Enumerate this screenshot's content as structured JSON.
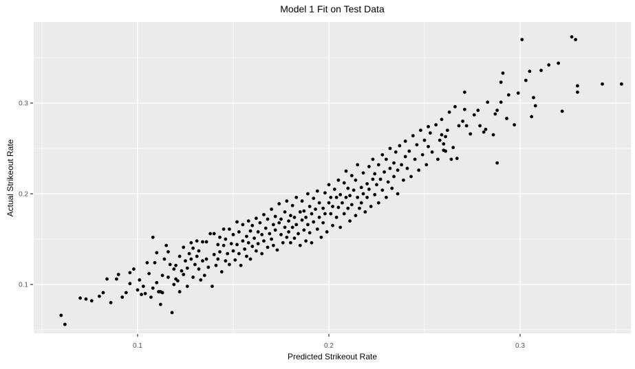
{
  "chart_data": {
    "type": "scatter",
    "title": "Model 1 Fit on Test Data",
    "xlabel": "Predicted Strikeout Rate",
    "ylabel": "Actual Strikeout Rate",
    "legend": "none",
    "grid": "major+minor",
    "panel_bg": "#EBEBEB",
    "grid_color": "#FFFFFF",
    "tick_color": "#333333",
    "tick_label_color": "#4D4D4D",
    "point_color": "#000000",
    "x_ticks": [
      0.1,
      0.2,
      0.3
    ],
    "x_tick_labels": [
      "0.1",
      "0.2",
      "0.3"
    ],
    "y_ticks": [
      0.1,
      0.2,
      0.3
    ],
    "y_tick_labels": [
      "0.1",
      "0.2",
      "0.3"
    ],
    "x_minor_ticks": [
      0.05,
      0.15,
      0.25,
      0.35
    ],
    "y_minor_ticks": [
      0.05,
      0.15,
      0.25,
      0.35
    ],
    "xlim": [
      0.0457,
      0.358
    ],
    "ylim": [
      0.0462,
      0.3894
    ],
    "points": [
      [
        0.06,
        0.066
      ],
      [
        0.062,
        0.056
      ],
      [
        0.07,
        0.085
      ],
      [
        0.073,
        0.084
      ],
      [
        0.076,
        0.082
      ],
      [
        0.08,
        0.087
      ],
      [
        0.082,
        0.091
      ],
      [
        0.084,
        0.106
      ],
      [
        0.086,
        0.08
      ],
      [
        0.089,
        0.106
      ],
      [
        0.09,
        0.111
      ],
      [
        0.092,
        0.086
      ],
      [
        0.094,
        0.091
      ],
      [
        0.096,
        0.101
      ],
      [
        0.096,
        0.113
      ],
      [
        0.098,
        0.117
      ],
      [
        0.1,
        0.094
      ],
      [
        0.101,
        0.105
      ],
      [
        0.102,
        0.089
      ],
      [
        0.103,
        0.098
      ],
      [
        0.104,
        0.09
      ],
      [
        0.105,
        0.124
      ],
      [
        0.106,
        0.112
      ],
      [
        0.107,
        0.086
      ],
      [
        0.108,
        0.096
      ],
      [
        0.108,
        0.152
      ],
      [
        0.109,
        0.124
      ],
      [
        0.11,
        0.102
      ],
      [
        0.11,
        0.135
      ],
      [
        0.111,
        0.092
      ],
      [
        0.112,
        0.078
      ],
      [
        0.112,
        0.092
      ],
      [
        0.113,
        0.091
      ],
      [
        0.113,
        0.11
      ],
      [
        0.114,
        0.128
      ],
      [
        0.115,
        0.143
      ],
      [
        0.116,
        0.136
      ],
      [
        0.116,
        0.108
      ],
      [
        0.117,
        0.122
      ],
      [
        0.118,
        0.069
      ],
      [
        0.119,
        0.1
      ],
      [
        0.119,
        0.117
      ],
      [
        0.12,
        0.106
      ],
      [
        0.12,
        0.121
      ],
      [
        0.121,
        0.104
      ],
      [
        0.122,
        0.092
      ],
      [
        0.122,
        0.131
      ],
      [
        0.123,
        0.115
      ],
      [
        0.124,
        0.141
      ],
      [
        0.124,
        0.111
      ],
      [
        0.125,
        0.126
      ],
      [
        0.126,
        0.118
      ],
      [
        0.126,
        0.098
      ],
      [
        0.127,
        0.134
      ],
      [
        0.128,
        0.146
      ],
      [
        0.128,
        0.128
      ],
      [
        0.129,
        0.14
      ],
      [
        0.129,
        0.108
      ],
      [
        0.13,
        0.122
      ],
      [
        0.131,
        0.131
      ],
      [
        0.131,
        0.148
      ],
      [
        0.132,
        0.117
      ],
      [
        0.132,
        0.137
      ],
      [
        0.133,
        0.105
      ],
      [
        0.134,
        0.126
      ],
      [
        0.134,
        0.147
      ],
      [
        0.135,
        0.11
      ],
      [
        0.136,
        0.147
      ],
      [
        0.136,
        0.128
      ],
      [
        0.137,
        0.119
      ],
      [
        0.138,
        0.156
      ],
      [
        0.139,
        0.098
      ],
      [
        0.14,
        0.133
      ],
      [
        0.14,
        0.156
      ],
      [
        0.141,
        0.121
      ],
      [
        0.142,
        0.144
      ],
      [
        0.142,
        0.128
      ],
      [
        0.143,
        0.152
      ],
      [
        0.143,
        0.136
      ],
      [
        0.144,
        0.114
      ],
      [
        0.145,
        0.143
      ],
      [
        0.145,
        0.161
      ],
      [
        0.146,
        0.126
      ],
      [
        0.146,
        0.15
      ],
      [
        0.147,
        0.134
      ],
      [
        0.148,
        0.161
      ],
      [
        0.148,
        0.122
      ],
      [
        0.149,
        0.145
      ],
      [
        0.15,
        0.137
      ],
      [
        0.15,
        0.155
      ],
      [
        0.151,
        0.127
      ],
      [
        0.152,
        0.169
      ],
      [
        0.152,
        0.144
      ],
      [
        0.153,
        0.134
      ],
      [
        0.153,
        0.158
      ],
      [
        0.154,
        0.121
      ],
      [
        0.155,
        0.148
      ],
      [
        0.155,
        0.166
      ],
      [
        0.156,
        0.139
      ],
      [
        0.157,
        0.153
      ],
      [
        0.157,
        0.131
      ],
      [
        0.158,
        0.17
      ],
      [
        0.158,
        0.146
      ],
      [
        0.159,
        0.128
      ],
      [
        0.159,
        0.159
      ],
      [
        0.16,
        0.142
      ],
      [
        0.16,
        0.165
      ],
      [
        0.161,
        0.151
      ],
      [
        0.162,
        0.137
      ],
      [
        0.162,
        0.173
      ],
      [
        0.163,
        0.158
      ],
      [
        0.163,
        0.145
      ],
      [
        0.164,
        0.168
      ],
      [
        0.165,
        0.134
      ],
      [
        0.165,
        0.155
      ],
      [
        0.166,
        0.177
      ],
      [
        0.166,
        0.148
      ],
      [
        0.167,
        0.162
      ],
      [
        0.168,
        0.141
      ],
      [
        0.168,
        0.172
      ],
      [
        0.169,
        0.156
      ],
      [
        0.17,
        0.183
      ],
      [
        0.17,
        0.15
      ],
      [
        0.171,
        0.166
      ],
      [
        0.171,
        0.143
      ],
      [
        0.172,
        0.175
      ],
      [
        0.172,
        0.16
      ],
      [
        0.173,
        0.138
      ],
      [
        0.174,
        0.168
      ],
      [
        0.174,
        0.189
      ],
      [
        0.175,
        0.155
      ],
      [
        0.175,
        0.172
      ],
      [
        0.176,
        0.146
      ],
      [
        0.177,
        0.18
      ],
      [
        0.177,
        0.163
      ],
      [
        0.178,
        0.152
      ],
      [
        0.178,
        0.192
      ],
      [
        0.179,
        0.17
      ],
      [
        0.179,
        0.158
      ],
      [
        0.18,
        0.146
      ],
      [
        0.18,
        0.176
      ],
      [
        0.181,
        0.163
      ],
      [
        0.181,
        0.187
      ],
      [
        0.182,
        0.151
      ],
      [
        0.182,
        0.174
      ],
      [
        0.183,
        0.196
      ],
      [
        0.183,
        0.166
      ],
      [
        0.184,
        0.156
      ],
      [
        0.185,
        0.18
      ],
      [
        0.185,
        0.143
      ],
      [
        0.186,
        0.171
      ],
      [
        0.186,
        0.192
      ],
      [
        0.187,
        0.16
      ],
      [
        0.187,
        0.181
      ],
      [
        0.188,
        0.148
      ],
      [
        0.188,
        0.174
      ],
      [
        0.189,
        0.2
      ],
      [
        0.189,
        0.166
      ],
      [
        0.19,
        0.186
      ],
      [
        0.19,
        0.157
      ],
      [
        0.191,
        0.178
      ],
      [
        0.191,
        0.146
      ],
      [
        0.192,
        0.195
      ],
      [
        0.192,
        0.169
      ],
      [
        0.193,
        0.183
      ],
      [
        0.194,
        0.161
      ],
      [
        0.194,
        0.203
      ],
      [
        0.195,
        0.174
      ],
      [
        0.195,
        0.19
      ],
      [
        0.196,
        0.152
      ],
      [
        0.197,
        0.184
      ],
      [
        0.197,
        0.168
      ],
      [
        0.198,
        0.201
      ],
      [
        0.198,
        0.178
      ],
      [
        0.199,
        0.158
      ],
      [
        0.2,
        0.19
      ],
      [
        0.2,
        0.21
      ],
      [
        0.201,
        0.178
      ],
      [
        0.201,
        0.196
      ],
      [
        0.202,
        0.165
      ],
      [
        0.202,
        0.186
      ],
      [
        0.203,
        0.205
      ],
      [
        0.204,
        0.174
      ],
      [
        0.204,
        0.196
      ],
      [
        0.205,
        0.215
      ],
      [
        0.205,
        0.185
      ],
      [
        0.206,
        0.163
      ],
      [
        0.206,
        0.199
      ],
      [
        0.207,
        0.19
      ],
      [
        0.208,
        0.212
      ],
      [
        0.208,
        0.178
      ],
      [
        0.209,
        0.196
      ],
      [
        0.209,
        0.225
      ],
      [
        0.21,
        0.184
      ],
      [
        0.21,
        0.206
      ],
      [
        0.211,
        0.17
      ],
      [
        0.211,
        0.198
      ],
      [
        0.212,
        0.22
      ],
      [
        0.212,
        0.188
      ],
      [
        0.213,
        0.204
      ],
      [
        0.214,
        0.176
      ],
      [
        0.214,
        0.215
      ],
      [
        0.215,
        0.196
      ],
      [
        0.215,
        0.232
      ],
      [
        0.216,
        0.184
      ],
      [
        0.217,
        0.207
      ],
      [
        0.217,
        0.19
      ],
      [
        0.218,
        0.223
      ],
      [
        0.218,
        0.2
      ],
      [
        0.219,
        0.18
      ],
      [
        0.22,
        0.211
      ],
      [
        0.22,
        0.196
      ],
      [
        0.221,
        0.23
      ],
      [
        0.221,
        0.205
      ],
      [
        0.222,
        0.186
      ],
      [
        0.223,
        0.216
      ],
      [
        0.223,
        0.238
      ],
      [
        0.224,
        0.199
      ],
      [
        0.224,
        0.222
      ],
      [
        0.225,
        0.21
      ],
      [
        0.226,
        0.19
      ],
      [
        0.226,
        0.232
      ],
      [
        0.227,
        0.216
      ],
      [
        0.228,
        0.243
      ],
      [
        0.228,
        0.204
      ],
      [
        0.229,
        0.224
      ],
      [
        0.23,
        0.196
      ],
      [
        0.23,
        0.238
      ],
      [
        0.231,
        0.213
      ],
      [
        0.232,
        0.228
      ],
      [
        0.232,
        0.25
      ],
      [
        0.233,
        0.206
      ],
      [
        0.234,
        0.234
      ],
      [
        0.234,
        0.219
      ],
      [
        0.235,
        0.246
      ],
      [
        0.236,
        0.226
      ],
      [
        0.236,
        0.2
      ],
      [
        0.237,
        0.253
      ],
      [
        0.238,
        0.232
      ],
      [
        0.239,
        0.215
      ],
      [
        0.24,
        0.241
      ],
      [
        0.24,
        0.258
      ],
      [
        0.241,
        0.228
      ],
      [
        0.242,
        0.247
      ],
      [
        0.243,
        0.219
      ],
      [
        0.244,
        0.264
      ],
      [
        0.245,
        0.238
      ],
      [
        0.246,
        0.254
      ],
      [
        0.247,
        0.226
      ],
      [
        0.248,
        0.27
      ],
      [
        0.249,
        0.243
      ],
      [
        0.25,
        0.259
      ],
      [
        0.251,
        0.232
      ],
      [
        0.252,
        0.252
      ],
      [
        0.252,
        0.274
      ],
      [
        0.253,
        0.267
      ],
      [
        0.254,
        0.246
      ],
      [
        0.256,
        0.276
      ],
      [
        0.257,
        0.238
      ],
      [
        0.258,
        0.259
      ],
      [
        0.259,
        0.265
      ],
      [
        0.259,
        0.282
      ],
      [
        0.26,
        0.255
      ],
      [
        0.26,
        0.248
      ],
      [
        0.261,
        0.263
      ],
      [
        0.261,
        0.247
      ],
      [
        0.262,
        0.27
      ],
      [
        0.263,
        0.29
      ],
      [
        0.264,
        0.238
      ],
      [
        0.265,
        0.251
      ],
      [
        0.266,
        0.296
      ],
      [
        0.267,
        0.239
      ],
      [
        0.268,
        0.275
      ],
      [
        0.27,
        0.28
      ],
      [
        0.271,
        0.293
      ],
      [
        0.271,
        0.312
      ],
      [
        0.272,
        0.275
      ],
      [
        0.274,
        0.266
      ],
      [
        0.276,
        0.287
      ],
      [
        0.278,
        0.292
      ],
      [
        0.279,
        0.275
      ],
      [
        0.281,
        0.268
      ],
      [
        0.282,
        0.271
      ],
      [
        0.283,
        0.301
      ],
      [
        0.286,
        0.265
      ],
      [
        0.287,
        0.288
      ],
      [
        0.288,
        0.234
      ],
      [
        0.288,
        0.292
      ],
      [
        0.29,
        0.301
      ],
      [
        0.29,
        0.323
      ],
      [
        0.291,
        0.333
      ],
      [
        0.293,
        0.283
      ],
      [
        0.294,
        0.309
      ],
      [
        0.297,
        0.276
      ],
      [
        0.299,
        0.311
      ],
      [
        0.301,
        0.37
      ],
      [
        0.303,
        0.325
      ],
      [
        0.305,
        0.335
      ],
      [
        0.306,
        0.285
      ],
      [
        0.307,
        0.306
      ],
      [
        0.308,
        0.297
      ],
      [
        0.311,
        0.336
      ],
      [
        0.315,
        0.342
      ],
      [
        0.32,
        0.344
      ],
      [
        0.322,
        0.291
      ],
      [
        0.327,
        0.373
      ],
      [
        0.329,
        0.37
      ],
      [
        0.33,
        0.319
      ],
      [
        0.33,
        0.312
      ],
      [
        0.343,
        0.321
      ],
      [
        0.353,
        0.321
      ]
    ]
  }
}
